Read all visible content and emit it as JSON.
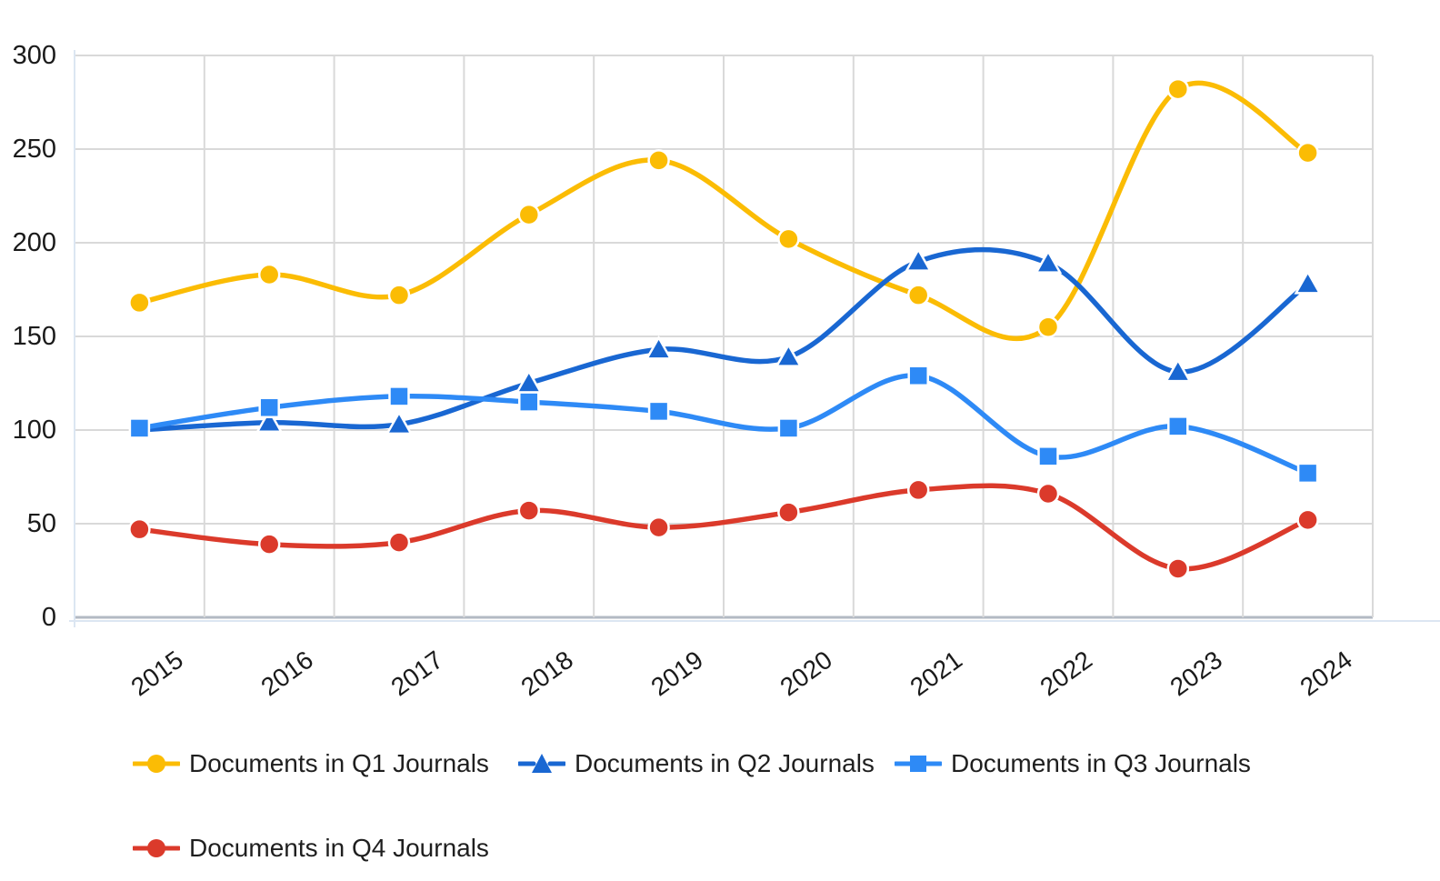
{
  "chart_data": {
    "type": "line",
    "title": "",
    "xlabel": "",
    "ylabel": "",
    "categories": [
      "2015",
      "2016",
      "2017",
      "2018",
      "2019",
      "2020",
      "2021",
      "2022",
      "2023",
      "2024"
    ],
    "series": [
      {
        "name": "Documents in Q1 Journals",
        "color": "#FBBC04",
        "marker": "circle",
        "values": [
          168,
          183,
          172,
          215,
          244,
          202,
          172,
          155,
          282,
          248
        ]
      },
      {
        "name": "Documents in Q2 Journals",
        "color": "#1967D2",
        "marker": "triangle",
        "values": [
          100,
          104,
          103,
          125,
          143,
          139,
          190,
          189,
          131,
          178
        ]
      },
      {
        "name": "Documents in Q3 Journals",
        "color": "#2E8AF6",
        "marker": "square",
        "values": [
          101,
          112,
          118,
          115,
          110,
          101,
          129,
          86,
          102,
          77
        ]
      },
      {
        "name": "Documents in Q4 Journals",
        "color": "#DB3A2B",
        "marker": "circle",
        "values": [
          47,
          39,
          40,
          57,
          48,
          56,
          68,
          66,
          26,
          52
        ]
      }
    ],
    "ylim": [
      0,
      300
    ],
    "yticks": [
      0,
      50,
      100,
      150,
      200,
      250,
      300
    ],
    "grid": true,
    "line_style": "smooth",
    "legend_position": "bottom",
    "legend_swatch_style": "dashed-line-with-marker",
    "background_color": "#ffffff",
    "grid_color": "#D9D9D9",
    "zero_line_color": "#B3BAC3",
    "axis_line_color": "#DCE6F2",
    "tick_label_color": "#1a1a1a",
    "legend_text_color": "#1f1f1f"
  }
}
